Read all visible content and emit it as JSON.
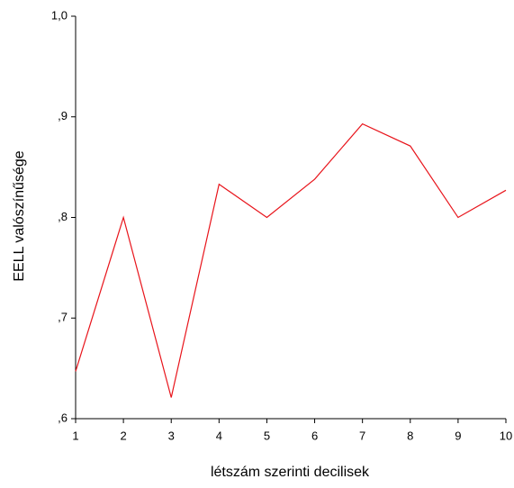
{
  "chart_data": {
    "type": "line",
    "xlabel": "létszám szerinti decilisek",
    "ylabel": "EELL valószínűsége",
    "x": [
      1,
      2,
      3,
      4,
      5,
      6,
      7,
      8,
      9,
      10
    ],
    "series": [
      {
        "color": "#e8141b",
        "values": [
          0.647,
          0.8,
          0.621,
          0.833,
          0.8,
          0.838,
          0.893,
          0.871,
          0.8,
          0.827
        ]
      }
    ],
    "xlim": [
      1,
      10
    ],
    "xticks": [
      1,
      2,
      3,
      4,
      5,
      6,
      7,
      8,
      9,
      10
    ],
    "ylim": [
      0.6,
      1.0
    ],
    "yticks": [
      {
        "value": 0.6,
        "label": ",6"
      },
      {
        "value": 0.7,
        "label": ",7"
      },
      {
        "value": 0.8,
        "label": ",8"
      },
      {
        "value": 0.9,
        "label": ",9"
      },
      {
        "value": 1.0,
        "label": "1,0"
      }
    ]
  }
}
